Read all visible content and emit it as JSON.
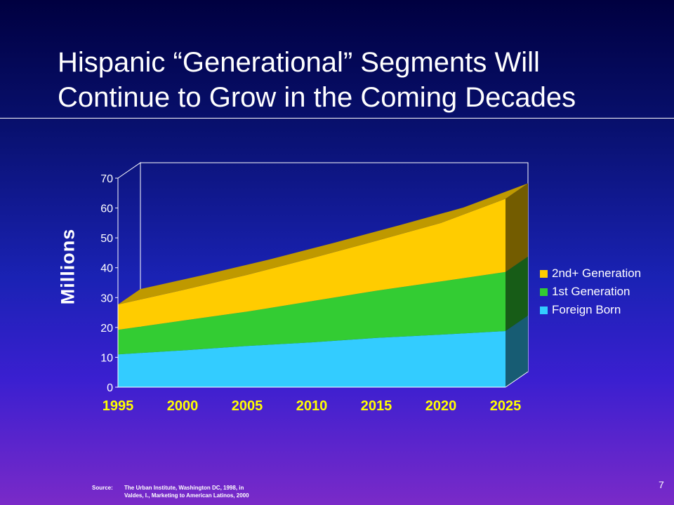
{
  "slide": {
    "title_line1": "Hispanic “Generational” Segments Will",
    "title_line2": "Continue to Grow in the Coming Decades",
    "source_label": "Source:",
    "source_line1": "The Urban Institute, Washington DC, 1998, in",
    "source_line2": "Valdes, I.,  Marketing to American Latinos, 2000",
    "page_number": "7"
  },
  "chart_data": {
    "type": "area",
    "stacked": true,
    "three_d": true,
    "ylabel": "Millions",
    "xlabel": "",
    "ylim": [
      0,
      70
    ],
    "yticks": [
      0,
      10,
      20,
      30,
      40,
      50,
      60,
      70
    ],
    "x": [
      1995,
      2000,
      2005,
      2010,
      2015,
      2020,
      2025
    ],
    "legend_position": "right",
    "series": [
      {
        "name": "Foreign Born",
        "color": "#33ccff",
        "values": [
          11,
          12.3,
          13.8,
          15,
          16.5,
          17.6,
          18.8
        ]
      },
      {
        "name": "1st Generation",
        "color": "#33cc33",
        "values": [
          8.2,
          10,
          11.5,
          13.8,
          15.8,
          17.8,
          19.8
        ]
      },
      {
        "name": "2nd+ Generation",
        "color": "#ffcc00",
        "values": [
          8.5,
          10.2,
          12.3,
          14.4,
          16.7,
          19.6,
          24.5
        ]
      }
    ]
  }
}
